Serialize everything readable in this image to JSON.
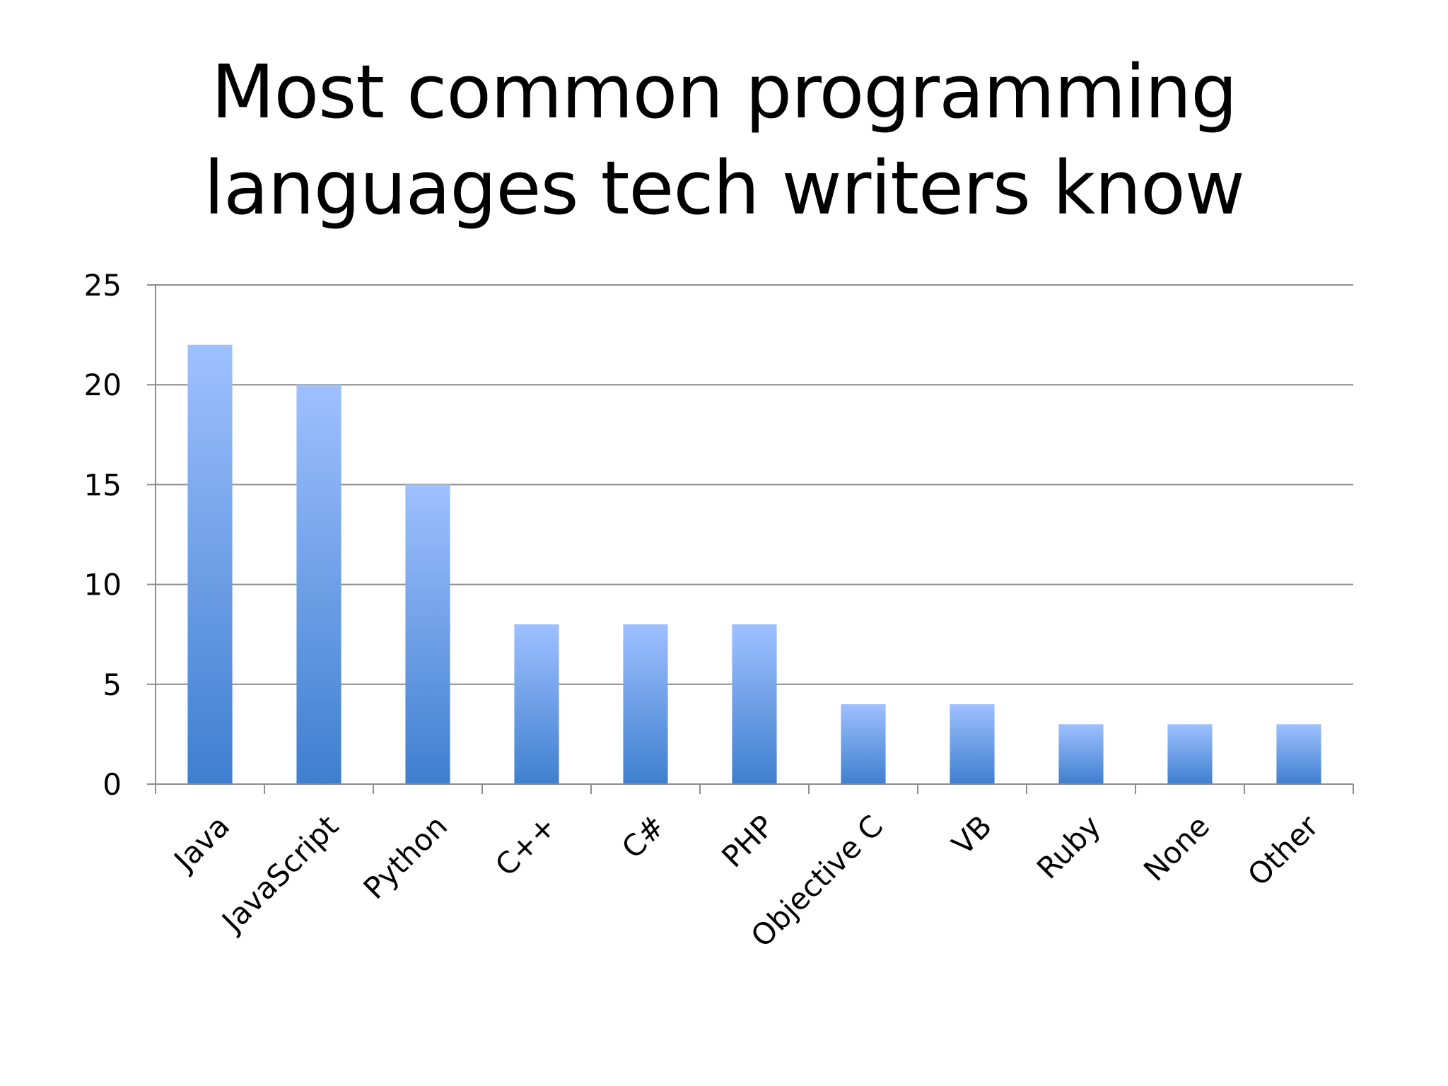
{
  "slide": {
    "title_line_1": "Most common programming",
    "title_line_2": "languages tech writers know"
  },
  "chart_data": {
    "type": "bar",
    "title": "Most common programming languages tech writers know",
    "xlabel": "",
    "ylabel": "",
    "categories": [
      "Java",
      "JavaScript",
      "Python",
      "C++",
      "C#",
      "PHP",
      "Objective C",
      "VB",
      "Ruby",
      "None",
      "Other"
    ],
    "values": [
      22,
      20,
      15,
      8,
      8,
      8,
      4,
      4,
      3,
      3,
      3
    ],
    "ylim": [
      0,
      25
    ],
    "yticks": [
      0,
      5,
      10,
      15,
      20,
      25
    ],
    "grid": true,
    "legend": "none",
    "bar_color_top": "#9ec0ff",
    "bar_color_bottom": "#3f7fcf",
    "grid_color": "#8c8c8c"
  }
}
